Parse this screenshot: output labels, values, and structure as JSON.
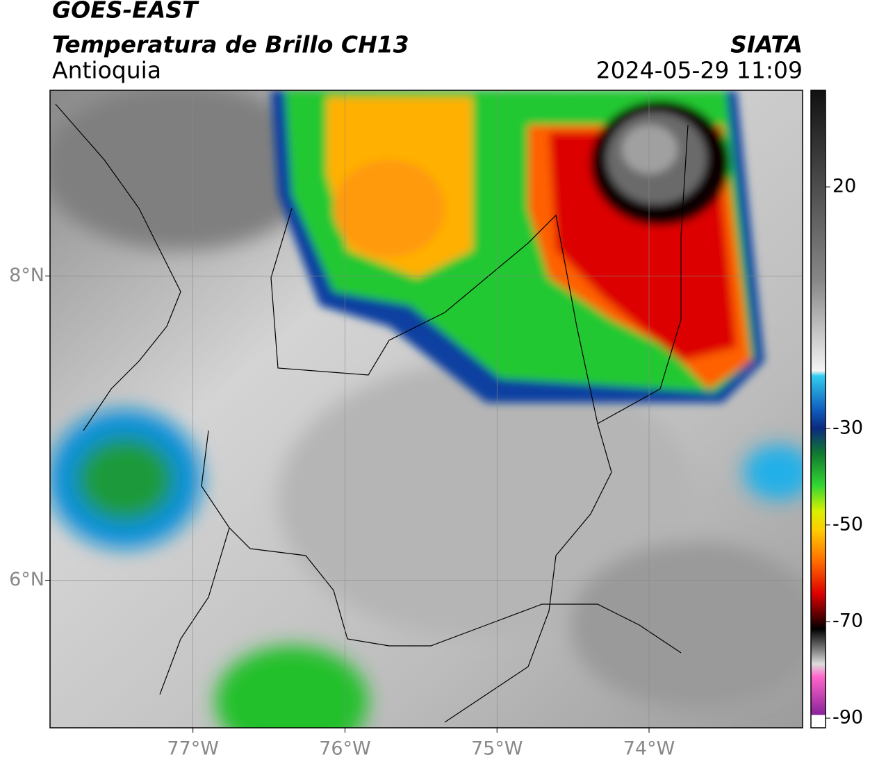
{
  "header": {
    "title": "GOES-EAST",
    "subtitle": "Temperatura de Brillo CH13",
    "region": "Antioquia",
    "source": "SIATA",
    "datetime": "2024-05-29 11:09"
  },
  "map": {
    "xlim": [
      -77.94,
      -72.99
    ],
    "ylim": [
      5.03,
      9.22
    ],
    "xticks": [
      {
        "value": -77,
        "label": "77°W"
      },
      {
        "value": -76,
        "label": "76°W"
      },
      {
        "value": -75,
        "label": "75°W"
      },
      {
        "value": -74,
        "label": "74°W"
      }
    ],
    "yticks": [
      {
        "value": 8,
        "label": "8°N"
      },
      {
        "value": 6,
        "label": "6°N"
      }
    ]
  },
  "colorbar": {
    "lim": [
      -92,
      40
    ],
    "ticks": [
      20,
      -30,
      -50,
      -70,
      -90
    ]
  }
}
